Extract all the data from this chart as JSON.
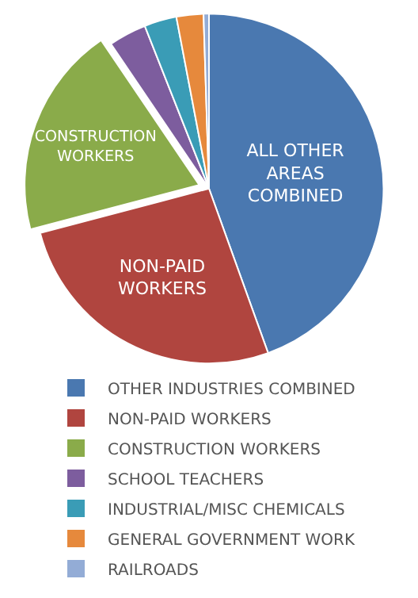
{
  "chart_data": {
    "type": "pie",
    "categories": [
      "OTHER INDUSTRIES COMBINED",
      "NON-PAID WORKERS",
      "CONSTRUCTION WORKERS",
      "SCHOOL TEACHERS",
      "INDUSTRIAL/MISC CHEMICALS",
      "GENERAL GOVERNMENT WORK",
      "RAILROADS"
    ],
    "values": [
      44.5,
      26.4,
      19.6,
      3.5,
      3,
      2.5,
      0.5
    ],
    "colors": [
      "#4a78b0",
      "#b0453f",
      "#8aab4a",
      "#7d5d9e",
      "#3a9cb6",
      "#e6893c",
      "#93acd6"
    ],
    "annotations": [
      "ALL OTHER AREAS COMBINED",
      "NON-PAID WORKERS",
      "CONSTRUCTION WORKERS"
    ],
    "legend": "bottom"
  }
}
